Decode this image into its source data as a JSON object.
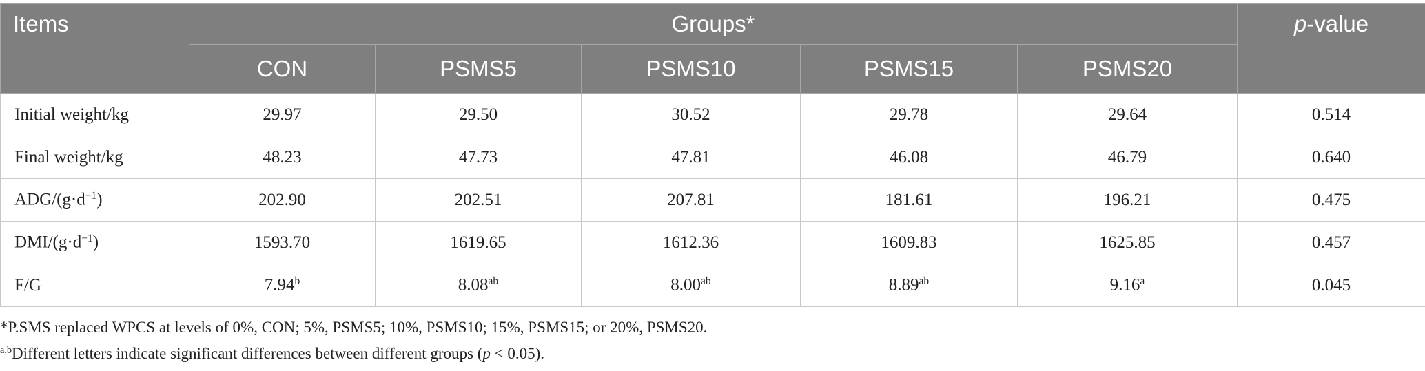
{
  "table": {
    "header": {
      "items": [
        {
          "text": "Items"
        }
      ],
      "groups": [
        {
          "text": "Groups*"
        }
      ],
      "p_value": [
        {
          "text": "p",
          "style": "italic"
        },
        {
          "text": "-value"
        }
      ],
      "columns": [
        "CON",
        "PSMS5",
        "PSMS10",
        "PSMS15",
        "PSMS20"
      ]
    },
    "rows": [
      {
        "label": [
          {
            "text": "Initial weight/kg"
          }
        ],
        "cells": [
          [
            {
              "text": "29.97"
            }
          ],
          [
            {
              "text": "29.50"
            }
          ],
          [
            {
              "text": "30.52"
            }
          ],
          [
            {
              "text": "29.78"
            }
          ],
          [
            {
              "text": "29.64"
            }
          ]
        ],
        "p": [
          {
            "text": "0.514"
          }
        ]
      },
      {
        "label": [
          {
            "text": "Final weight/kg"
          }
        ],
        "cells": [
          [
            {
              "text": "48.23"
            }
          ],
          [
            {
              "text": "47.73"
            }
          ],
          [
            {
              "text": "47.81"
            }
          ],
          [
            {
              "text": "46.08"
            }
          ],
          [
            {
              "text": "46.79"
            }
          ]
        ],
        "p": [
          {
            "text": "0.640"
          }
        ]
      },
      {
        "label": [
          {
            "text": "ADG/(g·d"
          },
          {
            "text": "−1",
            "style": "sup"
          },
          {
            "text": ")"
          }
        ],
        "cells": [
          [
            {
              "text": "202.90"
            }
          ],
          [
            {
              "text": "202.51"
            }
          ],
          [
            {
              "text": "207.81"
            }
          ],
          [
            {
              "text": "181.61"
            }
          ],
          [
            {
              "text": "196.21"
            }
          ]
        ],
        "p": [
          {
            "text": "0.475"
          }
        ]
      },
      {
        "label": [
          {
            "text": "DMI/(g·d"
          },
          {
            "text": "−1",
            "style": "sup"
          },
          {
            "text": ")"
          }
        ],
        "cells": [
          [
            {
              "text": "1593.70"
            }
          ],
          [
            {
              "text": "1619.65"
            }
          ],
          [
            {
              "text": "1612.36"
            }
          ],
          [
            {
              "text": "1609.83"
            }
          ],
          [
            {
              "text": "1625.85"
            }
          ]
        ],
        "p": [
          {
            "text": "0.457"
          }
        ]
      },
      {
        "label": [
          {
            "text": "F/G"
          }
        ],
        "cells": [
          [
            {
              "text": "7.94"
            },
            {
              "text": "b",
              "style": "sup"
            }
          ],
          [
            {
              "text": "8.08"
            },
            {
              "text": "ab",
              "style": "sup"
            }
          ],
          [
            {
              "text": "8.00"
            },
            {
              "text": "ab",
              "style": "sup"
            }
          ],
          [
            {
              "text": "8.89"
            },
            {
              "text": "ab",
              "style": "sup"
            }
          ],
          [
            {
              "text": "9.16"
            },
            {
              "text": "a",
              "style": "sup"
            }
          ]
        ],
        "p": [
          {
            "text": "0.045"
          }
        ]
      }
    ]
  },
  "footnotes": [
    [
      {
        "text": "*P.SMS replaced WPCS at levels of 0%, CON; 5%, PSMS5; 10%, PSMS10; 15%, PSMS15; or 20%, PSMS20."
      }
    ],
    [
      {
        "text": "a,b",
        "style": "sup"
      },
      {
        "text": "Different letters indicate significant differences between different groups ("
      },
      {
        "text": "p",
        "style": "italic"
      },
      {
        "text": " < 0.05)."
      }
    ]
  ]
}
